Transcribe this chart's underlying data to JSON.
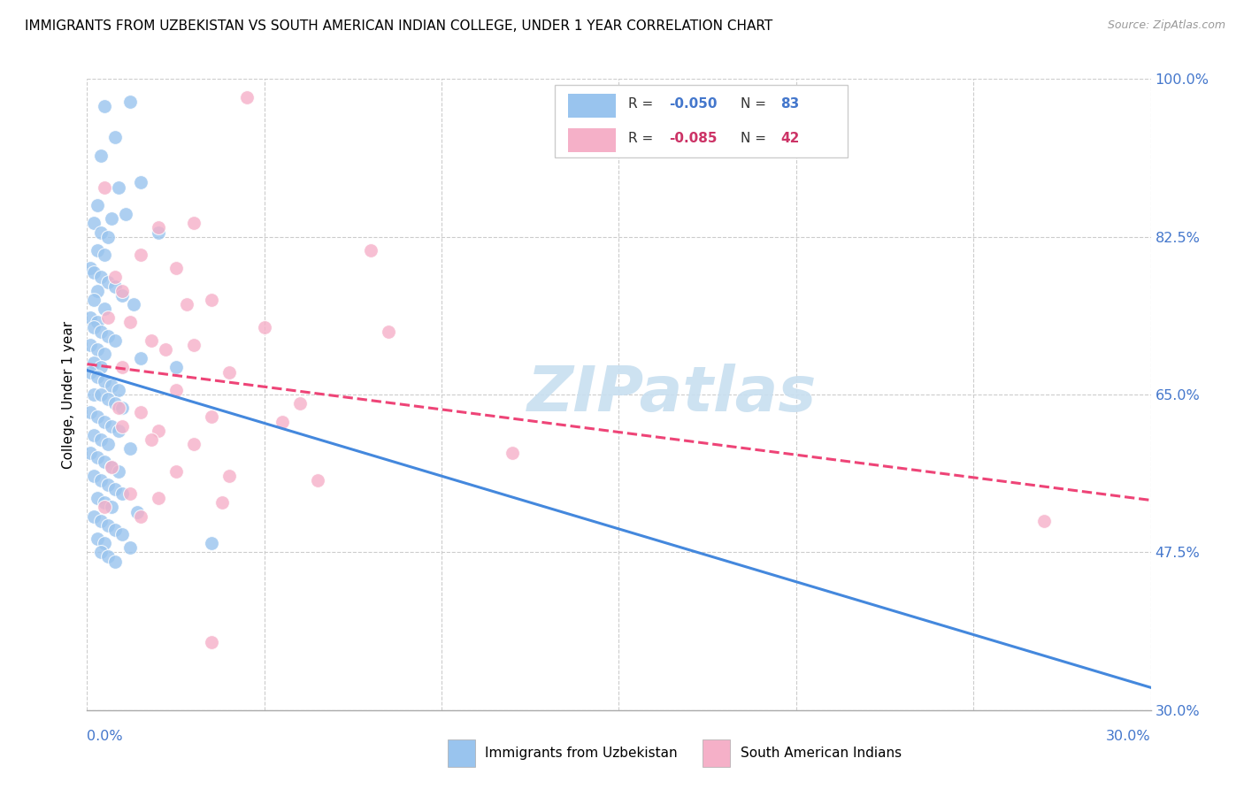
{
  "title": "IMMIGRANTS FROM UZBEKISTAN VS SOUTH AMERICAN INDIAN COLLEGE, UNDER 1 YEAR CORRELATION CHART",
  "source_text": "Source: ZipAtlas.com",
  "ylabel": "College, Under 1 year",
  "yaxis_ticks": [
    30.0,
    47.5,
    65.0,
    82.5,
    100.0
  ],
  "yaxis_labels": [
    "30.0%",
    "47.5%",
    "65.0%",
    "82.5%",
    "100.0%"
  ],
  "xmin": 0.0,
  "xmax": 30.0,
  "ymin": 30.0,
  "ymax": 100.0,
  "xticks": [
    0.0,
    5.0,
    10.0,
    15.0,
    20.0,
    25.0,
    30.0
  ],
  "watermark": "ZIPatlas",
  "watermark_color": "#c8dff0",
  "scatter_blue_color": "#99c4ee",
  "scatter_pink_color": "#f5b0c8",
  "trendline_blue_color": "#4488dd",
  "trendline_pink_color": "#ee4477",
  "trendline_blue_linestyle": "solid",
  "trendline_pink_linestyle": "dashed",
  "blue_r": "-0.050",
  "blue_n": "83",
  "pink_r": "-0.085",
  "pink_n": "42",
  "rv_color": "#4477cc",
  "pink_rv_color": "#cc3366",
  "blue_scatter_x": [
    0.5,
    0.8,
    1.2,
    0.4,
    0.9,
    1.5,
    0.3,
    0.7,
    1.1,
    0.2,
    0.4,
    0.6,
    2.0,
    0.3,
    0.5,
    0.1,
    0.2,
    0.4,
    0.6,
    0.8,
    0.3,
    1.0,
    0.2,
    1.3,
    0.5,
    0.1,
    0.3,
    0.2,
    0.4,
    0.6,
    0.8,
    0.1,
    0.3,
    0.5,
    1.5,
    0.2,
    0.4,
    2.5,
    0.1,
    0.3,
    0.5,
    0.7,
    0.9,
    0.2,
    0.4,
    0.6,
    0.8,
    1.0,
    0.1,
    0.3,
    0.5,
    0.7,
    0.9,
    0.2,
    0.4,
    0.6,
    1.2,
    0.1,
    0.3,
    0.5,
    0.7,
    0.9,
    0.2,
    0.4,
    0.6,
    0.8,
    1.0,
    0.3,
    0.5,
    0.7,
    1.4,
    0.2,
    0.4,
    0.6,
    0.8,
    1.0,
    0.3,
    0.5,
    1.2,
    3.5,
    0.4,
    0.6,
    0.8
  ],
  "blue_scatter_y": [
    97.0,
    93.5,
    97.5,
    91.5,
    88.0,
    88.5,
    86.0,
    84.5,
    85.0,
    84.0,
    83.0,
    82.5,
    83.0,
    81.0,
    80.5,
    79.0,
    78.5,
    78.0,
    77.5,
    77.0,
    76.5,
    76.0,
    75.5,
    75.0,
    74.5,
    73.5,
    73.0,
    72.5,
    72.0,
    71.5,
    71.0,
    70.5,
    70.0,
    69.5,
    69.0,
    68.5,
    68.0,
    68.0,
    67.5,
    67.0,
    66.5,
    66.0,
    65.5,
    65.0,
    65.0,
    64.5,
    64.0,
    63.5,
    63.0,
    62.5,
    62.0,
    61.5,
    61.0,
    60.5,
    60.0,
    59.5,
    59.0,
    58.5,
    58.0,
    57.5,
    57.0,
    56.5,
    56.0,
    55.5,
    55.0,
    54.5,
    54.0,
    53.5,
    53.0,
    52.5,
    52.0,
    51.5,
    51.0,
    50.5,
    50.0,
    49.5,
    49.0,
    48.5,
    48.0,
    48.5,
    47.5,
    47.0,
    46.5
  ],
  "pink_scatter_x": [
    4.5,
    0.5,
    3.0,
    2.0,
    8.0,
    1.5,
    2.5,
    0.8,
    1.0,
    3.5,
    2.8,
    0.6,
    1.2,
    5.0,
    1.8,
    3.0,
    2.2,
    1.0,
    4.0,
    8.5,
    2.5,
    6.0,
    0.9,
    1.5,
    3.5,
    5.5,
    1.0,
    2.0,
    1.8,
    3.0,
    12.0,
    0.7,
    2.5,
    4.0,
    6.5,
    1.2,
    2.0,
    3.8,
    0.5,
    1.5,
    27.0,
    3.5
  ],
  "pink_scatter_y": [
    98.0,
    88.0,
    84.0,
    83.5,
    81.0,
    80.5,
    79.0,
    78.0,
    76.5,
    75.5,
    75.0,
    73.5,
    73.0,
    72.5,
    71.0,
    70.5,
    70.0,
    68.0,
    67.5,
    72.0,
    65.5,
    64.0,
    63.5,
    63.0,
    62.5,
    62.0,
    61.5,
    61.0,
    60.0,
    59.5,
    58.5,
    57.0,
    56.5,
    56.0,
    55.5,
    54.0,
    53.5,
    53.0,
    52.5,
    51.5,
    51.0,
    37.5
  ],
  "bottom_legend_label1": "Immigrants from Uzbekistan",
  "bottom_legend_label2": "South American Indians"
}
